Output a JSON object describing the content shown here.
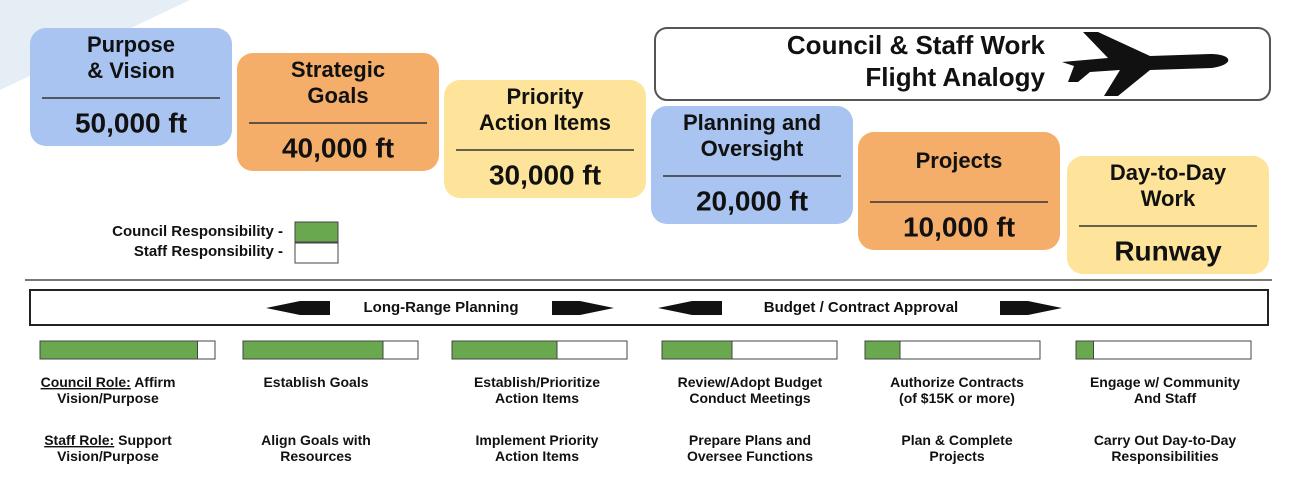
{
  "title": [
    "Council & Staff Work",
    "Flight Analogy"
  ],
  "levels": [
    {
      "title": [
        "Purpose",
        "& Vision"
      ],
      "altitude": "50,000 ft",
      "council_share": 0.9
    },
    {
      "title": [
        "Strategic",
        "Goals"
      ],
      "altitude": "40,000 ft",
      "council_share": 0.8
    },
    {
      "title": [
        "Priority",
        "Action Items"
      ],
      "altitude": "30,000 ft",
      "council_share": 0.6
    },
    {
      "title": [
        "Planning and",
        "Oversight"
      ],
      "altitude": "20,000 ft",
      "council_share": 0.4
    },
    {
      "title": [
        "Projects"
      ],
      "altitude": "10,000 ft",
      "council_share": 0.2
    },
    {
      "title": [
        "Day-to-Day",
        "Work"
      ],
      "altitude": "Runway",
      "council_share": 0.1
    }
  ],
  "legend": {
    "council": "Council Responsibility -",
    "staff": "Staff Responsibility -"
  },
  "banner": [
    "Long-Range Planning",
    "Budget / Contract Approval"
  ],
  "roles": {
    "council_label": "Council Role:",
    "staff_label": "Staff Role:",
    "council": [
      [
        "Affirm",
        "Vision/Purpose"
      ],
      [
        "Establish Goals"
      ],
      [
        "Establish/Prioritize",
        "Action Items"
      ],
      [
        "Review/Adopt Budget",
        "Conduct Meetings"
      ],
      [
        "Authorize Contracts",
        "(of $15K or more)"
      ],
      [
        "Engage w/ Community",
        "And Staff"
      ]
    ],
    "staff": [
      [
        "Support",
        "Vision/Purpose"
      ],
      [
        "Align Goals with",
        "Resources"
      ],
      [
        "Implement  Priority",
        "Action Items"
      ],
      [
        "Prepare Plans and",
        "Oversee Functions"
      ],
      [
        "Plan & Complete",
        "Projects"
      ],
      [
        "Carry Out Day-to-Day",
        "Responsibilities"
      ]
    ]
  }
}
